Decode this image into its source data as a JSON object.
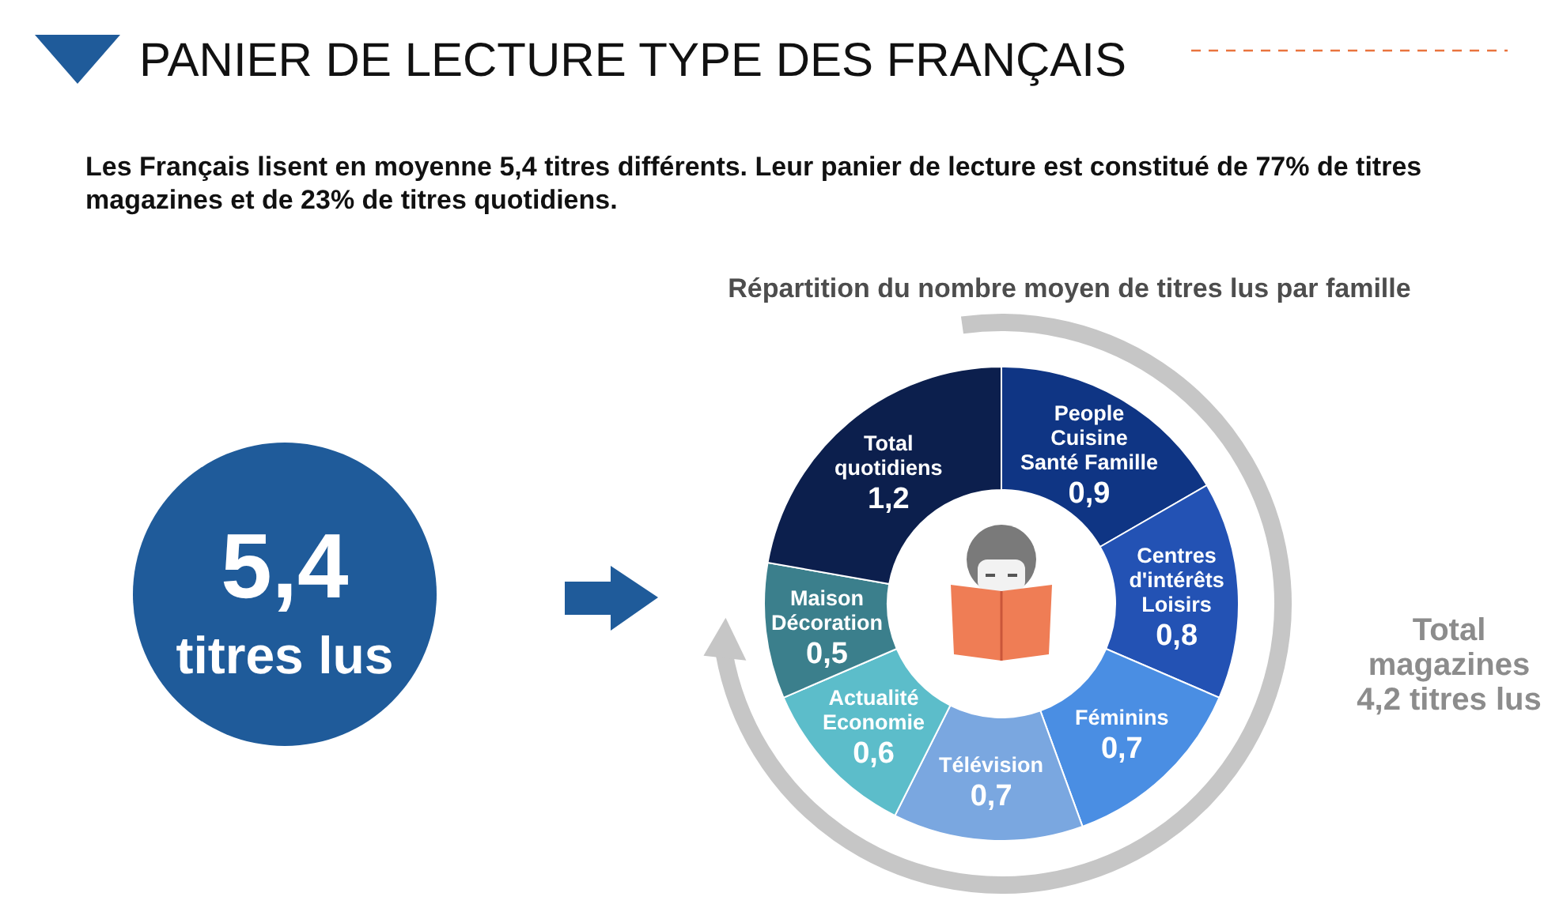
{
  "chart_data": {
    "type": "donut",
    "title": "PANIER DE LECTURE TYPE DES FRANÇAIS",
    "subtitle": "Les Français lisent en moyenne 5,4 titres différents. Leur panier de lecture est constitué de 77% de titres magazines et de 23% de titres quotidiens.",
    "categories": [
      "People\nCuisine\nSanté Famille",
      "Centres\nd'intérêts\nLoisirs",
      "Féminins",
      "Télévision",
      "Actualité\nEconomie",
      "Maison\nDécoration",
      "Total\nquotidiens"
    ],
    "values": [
      0.9,
      0.8,
      0.7,
      0.7,
      0.6,
      0.5,
      1.2
    ],
    "value_labels": [
      "0,9",
      "0,8",
      "0,7",
      "0,7",
      "0,6",
      "0,5",
      "1,2"
    ],
    "colors": [
      "#0f3584",
      "#2352b4",
      "#4a8ee3",
      "#7aa7e0",
      "#5cbdca",
      "#3b7f8c",
      "#0c1f4d"
    ],
    "annotations": [
      "Répartition du nombre moyen de titres lus par famille",
      "5,4",
      "titres lus",
      "Total\nmagazines\n4,2 titres lus"
    ]
  }
}
